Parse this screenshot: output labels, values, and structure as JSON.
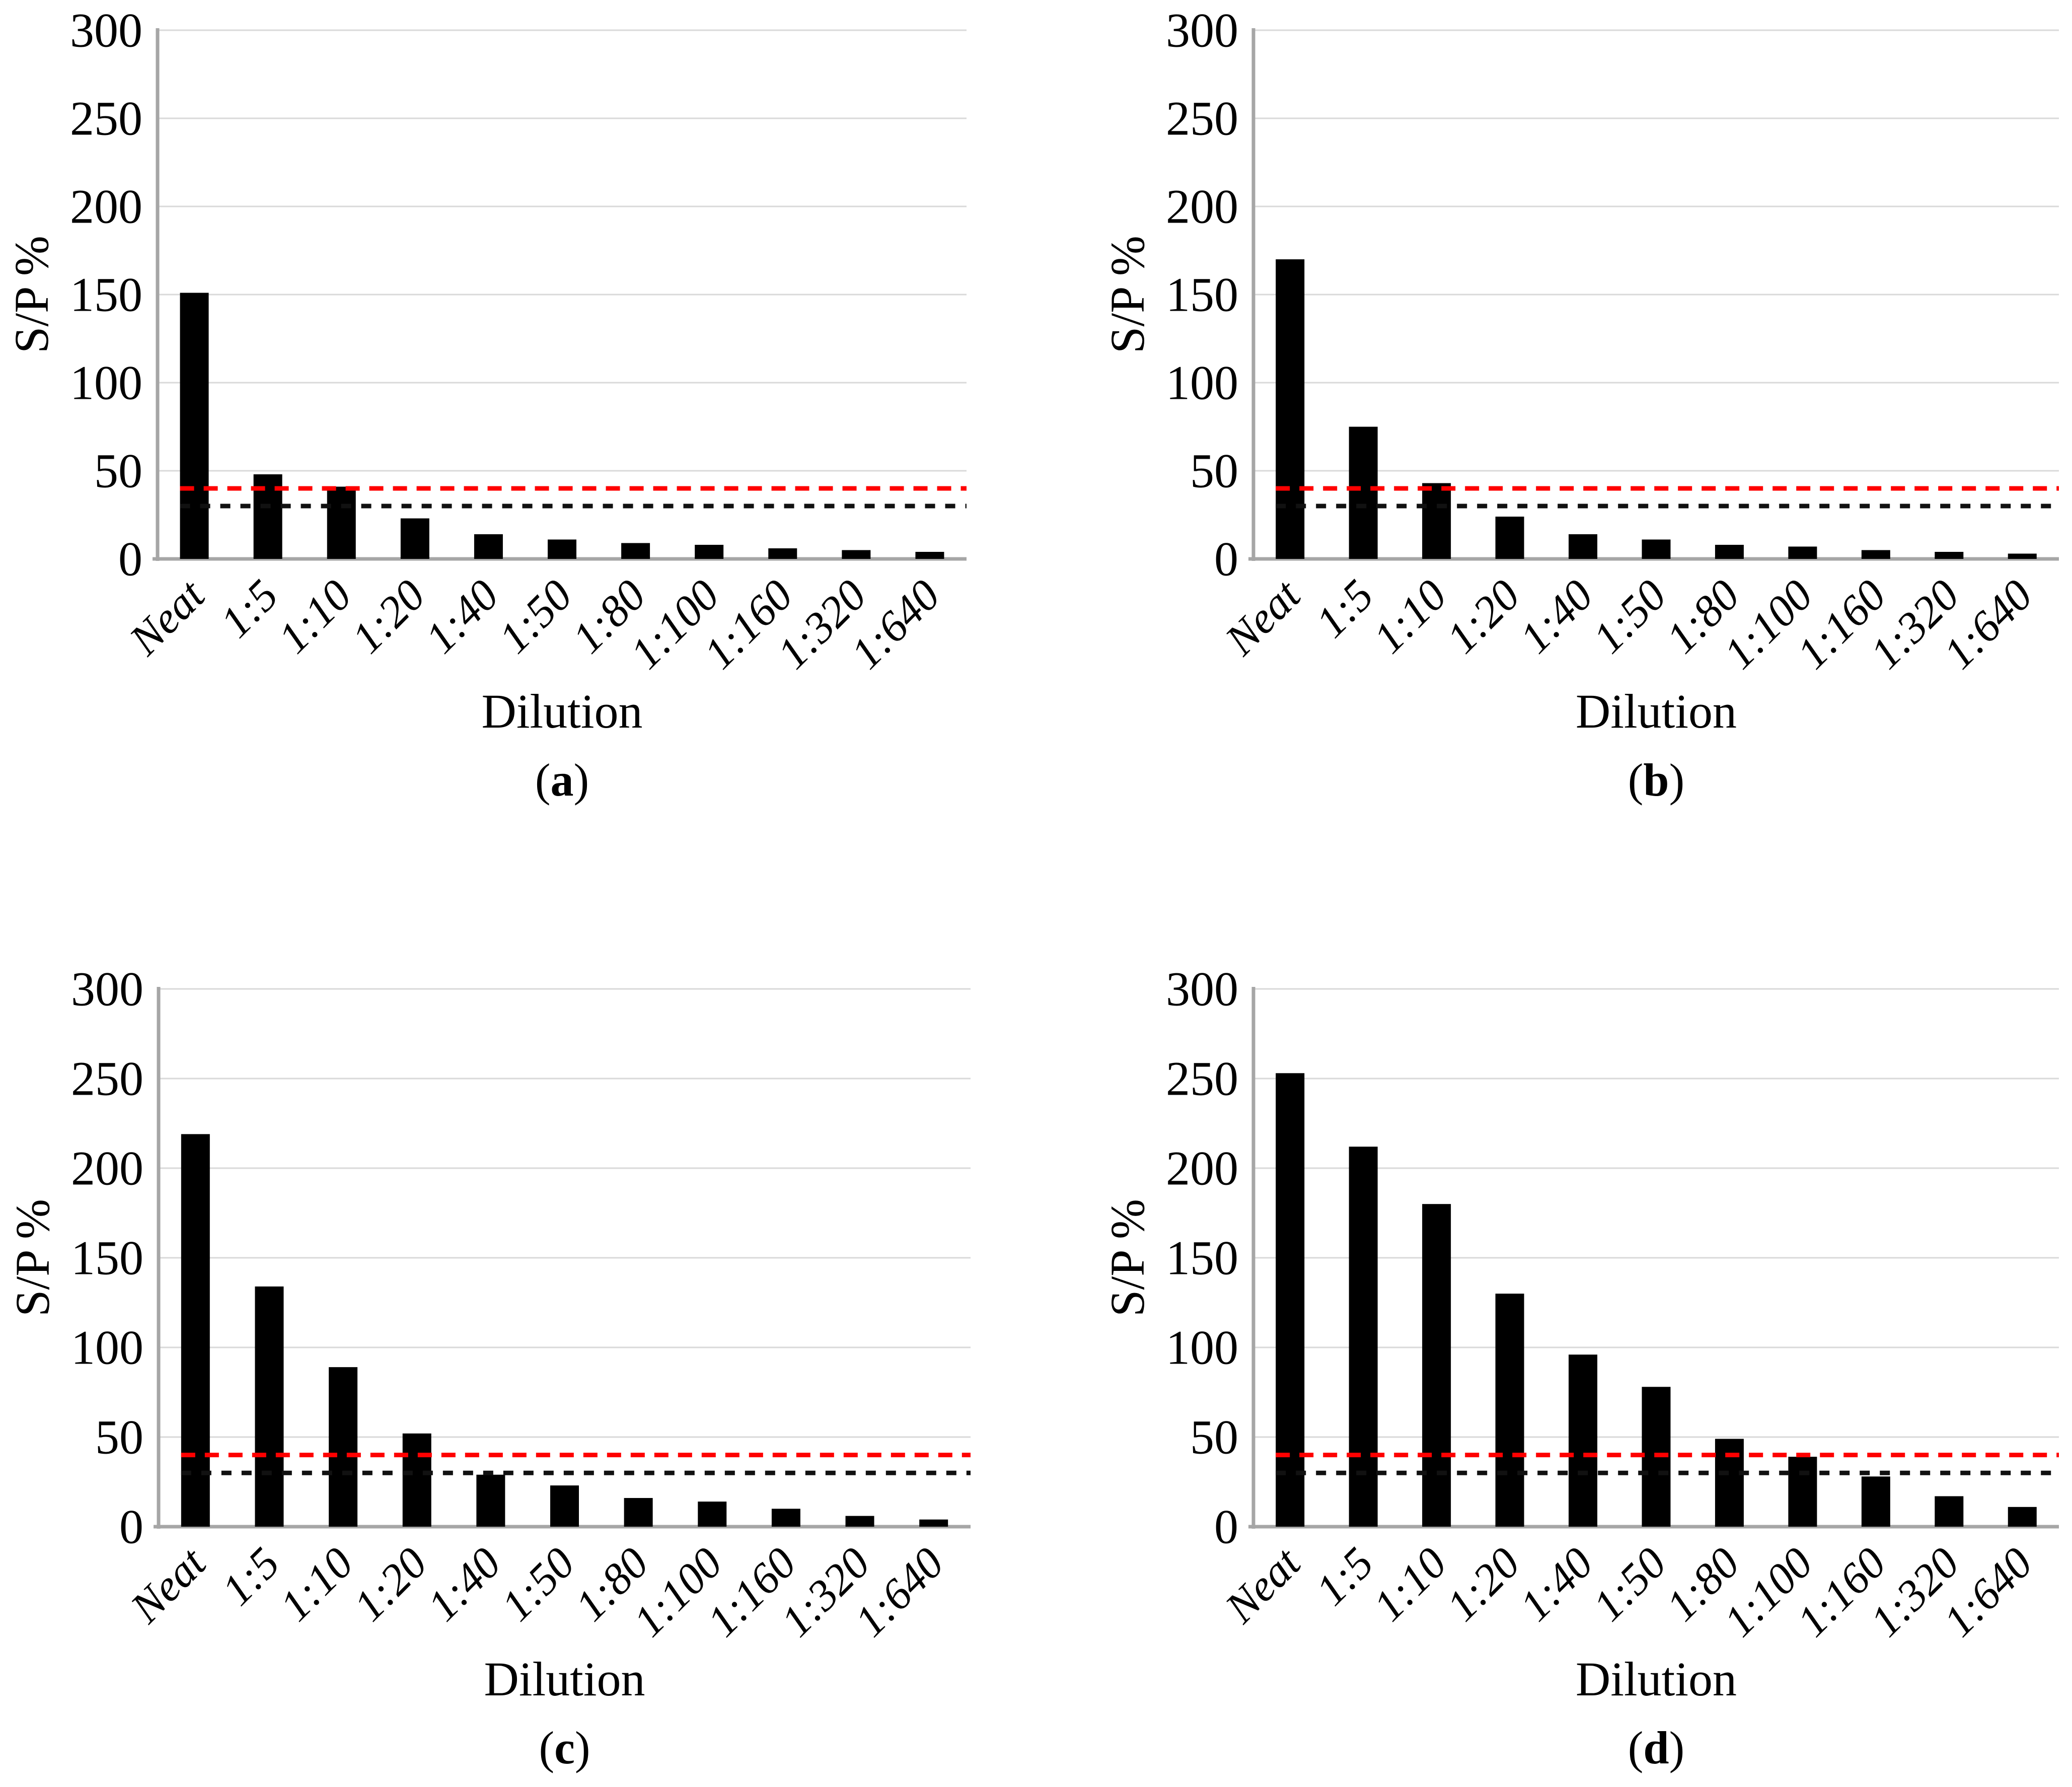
{
  "figure": {
    "background": "#ffffff",
    "ylabel": "S/P %",
    "xlabel": "Dilution",
    "bar_color": "#000000",
    "gridline_color": "#d9d9d9",
    "axis_color": "#a6a6a6",
    "red_threshold_color": "#ff0000",
    "black_threshold_color": "#111111"
  },
  "chart_data": [
    {
      "type": "bar",
      "panel": "a",
      "caption": {
        "open": "(",
        "letter": "a",
        "close": ")"
      },
      "title": "",
      "xlabel": "Dilution",
      "ylabel": "S/P %",
      "categories": [
        "Neat",
        "1:5",
        "1:10",
        "1:20",
        "1:40",
        "1:50",
        "1:80",
        "1:100",
        "1:160",
        "1:320",
        "1:640"
      ],
      "values": [
        151,
        48,
        41,
        23,
        14,
        11,
        9,
        8,
        6,
        5,
        4
      ],
      "ylim": [
        0,
        300
      ],
      "y_ticks": [
        0,
        50,
        100,
        150,
        200,
        250,
        300
      ],
      "grid": true,
      "legend": "none",
      "threshold_lines": [
        {
          "name": "red-dashed-cutoff",
          "value": 40,
          "color": "#ff0000"
        },
        {
          "name": "black-dashed-cutoff",
          "value": 30,
          "color": "#111111"
        }
      ]
    },
    {
      "type": "bar",
      "panel": "b",
      "caption": {
        "open": "(",
        "letter": "b",
        "close": ")"
      },
      "title": "",
      "xlabel": "Dilution",
      "ylabel": "S/P %",
      "categories": [
        "Neat",
        "1:5",
        "1:10",
        "1:20",
        "1:40",
        "1:50",
        "1:80",
        "1:100",
        "1:160",
        "1:320",
        "1:640"
      ],
      "values": [
        170,
        75,
        43,
        24,
        14,
        11,
        8,
        7,
        5,
        4,
        3
      ],
      "ylim": [
        0,
        300
      ],
      "y_ticks": [
        0,
        50,
        100,
        150,
        200,
        250,
        300
      ],
      "grid": true,
      "legend": "none",
      "threshold_lines": [
        {
          "name": "red-dashed-cutoff",
          "value": 40,
          "color": "#ff0000"
        },
        {
          "name": "black-dashed-cutoff",
          "value": 30,
          "color": "#111111"
        }
      ]
    },
    {
      "type": "bar",
      "panel": "c",
      "caption": {
        "open": "(",
        "letter": "c",
        "close": ")"
      },
      "title": "",
      "xlabel": "Dilution",
      "ylabel": "S/P %",
      "categories": [
        "Neat",
        "1:5",
        "1:10",
        "1:20",
        "1:40",
        "1:50",
        "1:80",
        "1:100",
        "1:160",
        "1:320",
        "1:640"
      ],
      "values": [
        219,
        134,
        89,
        52,
        29,
        23,
        16,
        14,
        10,
        6,
        4
      ],
      "ylim": [
        0,
        300
      ],
      "y_ticks": [
        0,
        50,
        100,
        150,
        200,
        250,
        300
      ],
      "grid": true,
      "legend": "none",
      "threshold_lines": [
        {
          "name": "red-dashed-cutoff",
          "value": 40,
          "color": "#ff0000"
        },
        {
          "name": "black-dashed-cutoff",
          "value": 30,
          "color": "#111111"
        }
      ]
    },
    {
      "type": "bar",
      "panel": "d",
      "caption": {
        "open": "(",
        "letter": "d",
        "close": ")"
      },
      "title": "",
      "xlabel": "Dilution",
      "ylabel": "S/P %",
      "categories": [
        "Neat",
        "1:5",
        "1:10",
        "1:20",
        "1:40",
        "1:50",
        "1:80",
        "1:100",
        "1:160",
        "1:320",
        "1:640"
      ],
      "values": [
        253,
        212,
        180,
        130,
        96,
        78,
        49,
        39,
        28,
        17,
        11
      ],
      "ylim": [
        0,
        300
      ],
      "y_ticks": [
        0,
        50,
        100,
        150,
        200,
        250,
        300
      ],
      "grid": true,
      "legend": "none",
      "threshold_lines": [
        {
          "name": "red-dashed-cutoff",
          "value": 40,
          "color": "#ff0000"
        },
        {
          "name": "black-dashed-cutoff",
          "value": 30,
          "color": "#111111"
        }
      ]
    }
  ]
}
